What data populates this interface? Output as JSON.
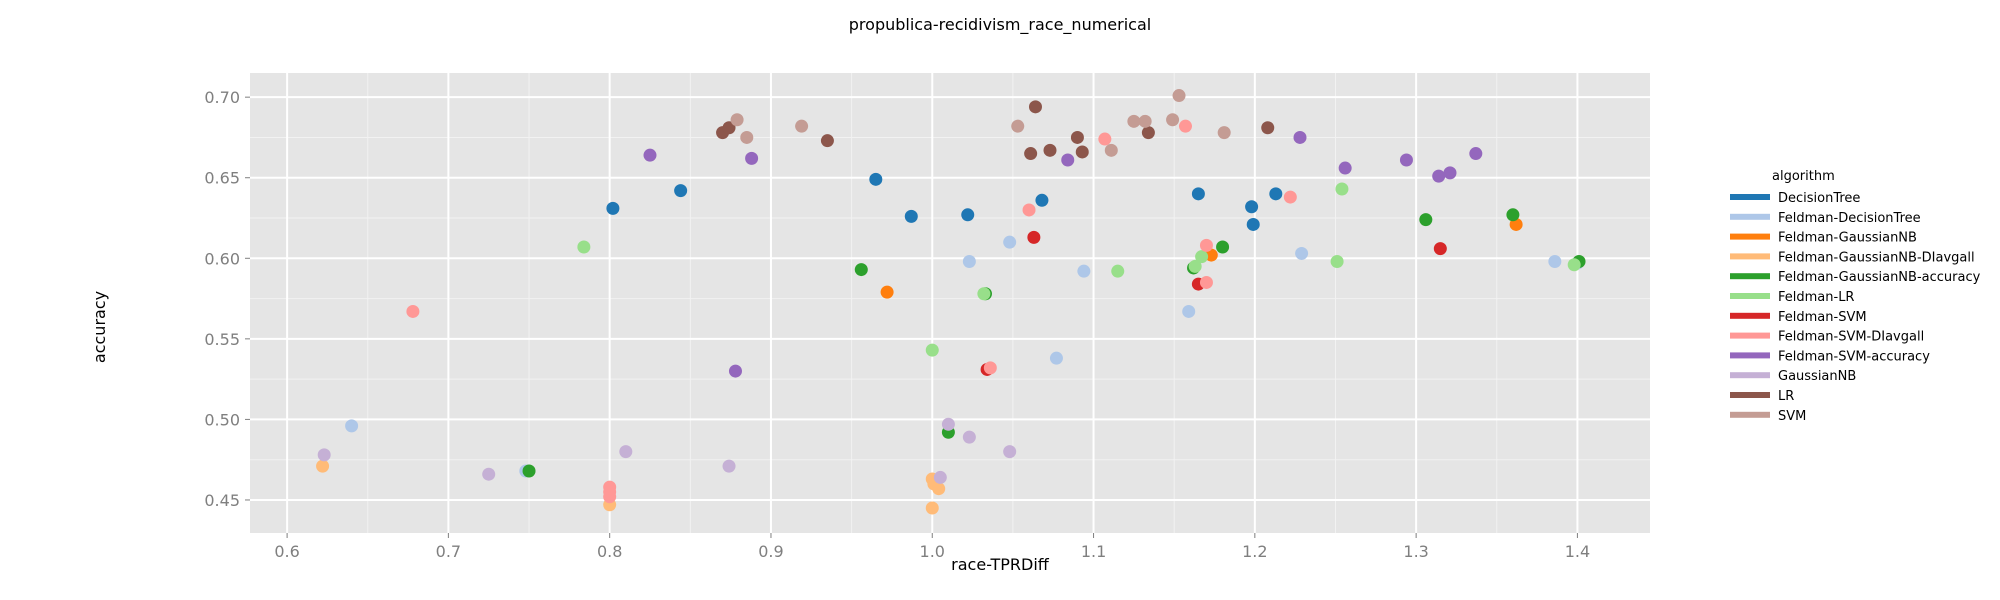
{
  "chart_data": {
    "type": "scatter",
    "title": "propublica-recidivism_race_numerical",
    "xlabel": "race-TPRDiff",
    "ylabel": "accuracy",
    "xlim": [
      0.577,
      1.445
    ],
    "ylim": [
      0.4295,
      0.715
    ],
    "xticks": [
      0.6,
      0.7,
      0.8,
      0.9,
      1.0,
      1.1,
      1.2,
      1.3,
      1.4
    ],
    "xtick_labels": [
      "0.6",
      "0.7",
      "0.8",
      "0.9",
      "1.0",
      "1.1",
      "1.2",
      "1.3",
      "1.4"
    ],
    "yticks": [
      0.45,
      0.5,
      0.55,
      0.6,
      0.65,
      0.7
    ],
    "ytick_labels": [
      "0.45",
      "0.50",
      "0.55",
      "0.60",
      "0.65",
      "0.70"
    ],
    "grid": true,
    "legend_title": "algorithm",
    "legend_position": "right",
    "series": [
      {
        "name": "DecisionTree",
        "color": "#1f77b4",
        "points": [
          [
            0.802,
            0.631
          ],
          [
            0.844,
            0.642
          ],
          [
            0.965,
            0.649
          ],
          [
            0.987,
            0.626
          ],
          [
            1.022,
            0.627
          ],
          [
            1.068,
            0.636
          ],
          [
            1.165,
            0.64
          ],
          [
            1.198,
            0.632
          ],
          [
            1.199,
            0.621
          ],
          [
            1.213,
            0.64
          ]
        ]
      },
      {
        "name": "Feldman-DecisionTree",
        "color": "#aec7e8",
        "points": [
          [
            0.64,
            0.496
          ],
          [
            0.748,
            0.468
          ],
          [
            1.023,
            0.598
          ],
          [
            1.048,
            0.61
          ],
          [
            1.077,
            0.538
          ],
          [
            1.094,
            0.592
          ],
          [
            1.159,
            0.567
          ],
          [
            1.229,
            0.603
          ],
          [
            1.386,
            0.598
          ],
          [
            1.4,
            0.597
          ]
        ]
      },
      {
        "name": "Feldman-GaussianNB",
        "color": "#ff7f0e",
        "points": [
          [
            0.972,
            0.579
          ],
          [
            1.173,
            0.602
          ],
          [
            1.362,
            0.621
          ]
        ]
      },
      {
        "name": "Feldman-GaussianNB-DIavgall",
        "color": "#ffbb78",
        "points": [
          [
            0.622,
            0.471
          ],
          [
            0.8,
            0.447
          ],
          [
            1.0,
            0.445
          ],
          [
            1.0,
            0.463
          ],
          [
            1.001,
            0.46
          ],
          [
            1.004,
            0.457
          ]
        ]
      },
      {
        "name": "Feldman-GaussianNB-accuracy",
        "color": "#2ca02c",
        "points": [
          [
            0.75,
            0.468
          ],
          [
            0.956,
            0.593
          ],
          [
            1.01,
            0.492
          ],
          [
            1.033,
            0.578
          ],
          [
            1.162,
            0.594
          ],
          [
            1.18,
            0.607
          ],
          [
            1.306,
            0.624
          ],
          [
            1.36,
            0.627
          ],
          [
            1.401,
            0.598
          ]
        ]
      },
      {
        "name": "Feldman-LR",
        "color": "#98df8a",
        "points": [
          [
            0.784,
            0.607
          ],
          [
            1.0,
            0.543
          ],
          [
            1.032,
            0.578
          ],
          [
            1.115,
            0.592
          ],
          [
            1.163,
            0.595
          ],
          [
            1.167,
            0.601
          ],
          [
            1.251,
            0.598
          ],
          [
            1.254,
            0.643
          ],
          [
            1.398,
            0.596
          ]
        ]
      },
      {
        "name": "Feldman-SVM",
        "color": "#d62728",
        "points": [
          [
            1.034,
            0.531
          ],
          [
            1.063,
            0.613
          ],
          [
            1.165,
            0.584
          ],
          [
            1.315,
            0.606
          ]
        ]
      },
      {
        "name": "Feldman-SVM-DIavgall",
        "color": "#ff9896",
        "points": [
          [
            0.678,
            0.567
          ],
          [
            0.8,
            0.458
          ],
          [
            0.8,
            0.455
          ],
          [
            0.8,
            0.452
          ],
          [
            1.036,
            0.532
          ],
          [
            1.06,
            0.63
          ],
          [
            1.107,
            0.674
          ],
          [
            1.157,
            0.682
          ],
          [
            1.17,
            0.585
          ],
          [
            1.17,
            0.608
          ],
          [
            1.222,
            0.638
          ]
        ]
      },
      {
        "name": "Feldman-SVM-accuracy",
        "color": "#9467bd",
        "points": [
          [
            0.825,
            0.664
          ],
          [
            0.878,
            0.53
          ],
          [
            0.888,
            0.662
          ],
          [
            1.084,
            0.661
          ],
          [
            1.228,
            0.675
          ],
          [
            1.256,
            0.656
          ],
          [
            1.294,
            0.661
          ],
          [
            1.314,
            0.651
          ],
          [
            1.321,
            0.653
          ],
          [
            1.337,
            0.665
          ]
        ]
      },
      {
        "name": "GaussianNB",
        "color": "#c5b0d5",
        "points": [
          [
            0.623,
            0.478
          ],
          [
            0.725,
            0.466
          ],
          [
            0.81,
            0.48
          ],
          [
            0.874,
            0.471
          ],
          [
            1.005,
            0.464
          ],
          [
            1.01,
            0.497
          ],
          [
            1.023,
            0.489
          ],
          [
            1.048,
            0.48
          ]
        ]
      },
      {
        "name": "LR",
        "color": "#8c564b",
        "points": [
          [
            0.87,
            0.678
          ],
          [
            0.874,
            0.681
          ],
          [
            0.935,
            0.673
          ],
          [
            1.061,
            0.665
          ],
          [
            1.064,
            0.694
          ],
          [
            1.073,
            0.667
          ],
          [
            1.09,
            0.675
          ],
          [
            1.093,
            0.666
          ],
          [
            1.134,
            0.678
          ],
          [
            1.208,
            0.681
          ]
        ]
      },
      {
        "name": "SVM",
        "color": "#c49c94",
        "points": [
          [
            0.879,
            0.686
          ],
          [
            0.885,
            0.675
          ],
          [
            0.919,
            0.682
          ],
          [
            1.053,
            0.682
          ],
          [
            1.111,
            0.667
          ],
          [
            1.125,
            0.685
          ],
          [
            1.132,
            0.685
          ],
          [
            1.149,
            0.686
          ],
          [
            1.153,
            0.701
          ],
          [
            1.181,
            0.678
          ]
        ]
      }
    ]
  }
}
